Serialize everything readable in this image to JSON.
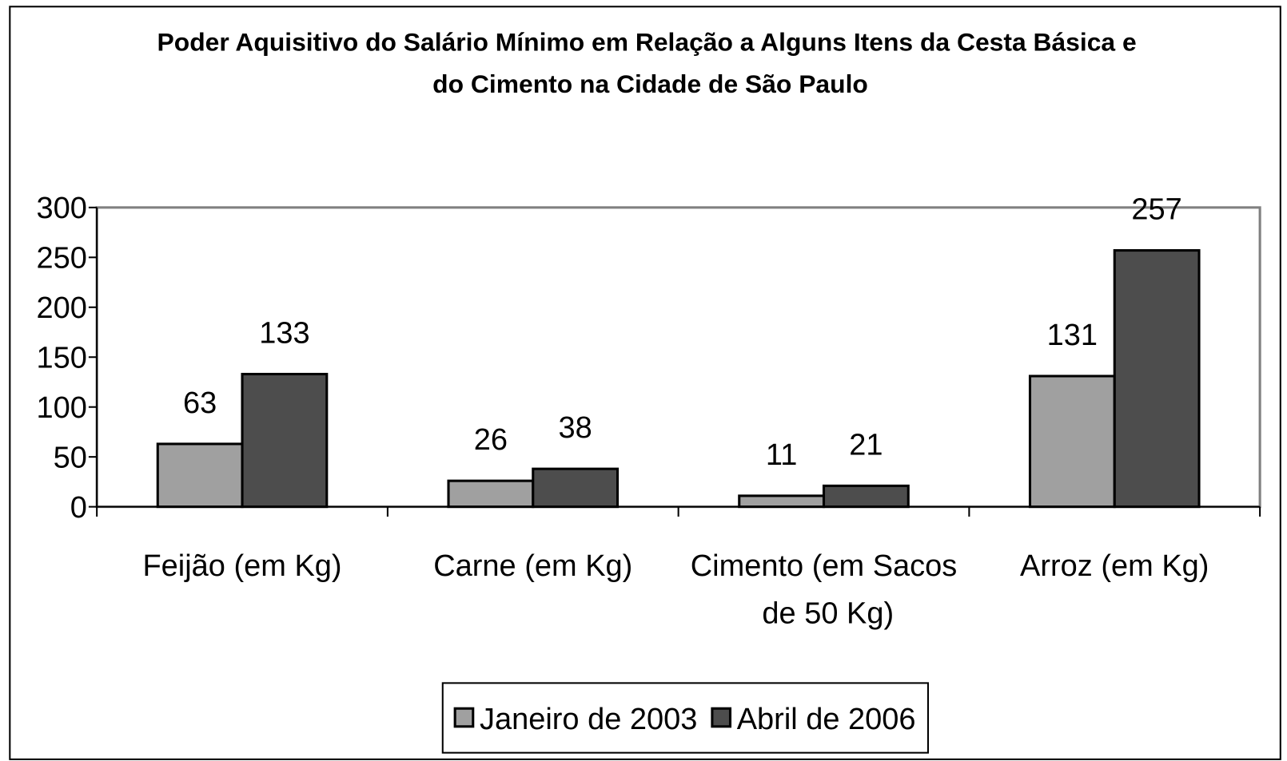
{
  "chart_data": {
    "type": "bar",
    "title": "Poder Aquisitivo do Salário Mínimo em Relação a Alguns Itens da Cesta Básica e do Cimento na Cidade de São Paulo",
    "categories": [
      "Feijão (em Kg)",
      "Carne (em Kg)",
      "Cimento (em Sacos de 50 Kg)",
      "Arroz (em Kg)"
    ],
    "series": [
      {
        "name": "Janeiro de 2003",
        "color": "#a0a0a0",
        "values": [
          63,
          26,
          11,
          131
        ]
      },
      {
        "name": "Abril de 2006",
        "color": "#4d4d4d",
        "values": [
          133,
          38,
          21,
          257
        ]
      }
    ],
    "ylim": [
      0,
      300
    ],
    "yticks": [
      0,
      50,
      100,
      150,
      200,
      250,
      300
    ],
    "grid": false,
    "legend": "bottom"
  }
}
